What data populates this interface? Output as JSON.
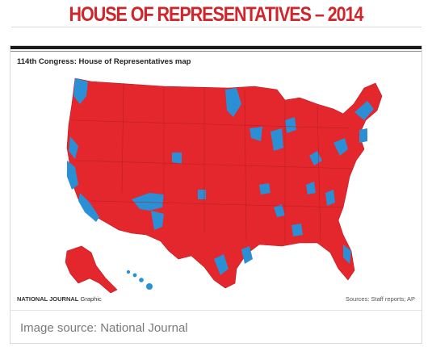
{
  "slide": {
    "title": "HOUSE OF REPRESENTATIVES – 2014"
  },
  "map": {
    "title": "114th Congress: House of Representatives map",
    "credit_brand": "NATIONAL JOURNAL",
    "credit_suffix": "Graphic",
    "sources": "Sources: Staff reports; AP",
    "colors": {
      "republican": "#e4262d",
      "democratic": "#2b8fd6",
      "border": "#b81d22"
    }
  },
  "image_source": "Image source: National Journal"
}
